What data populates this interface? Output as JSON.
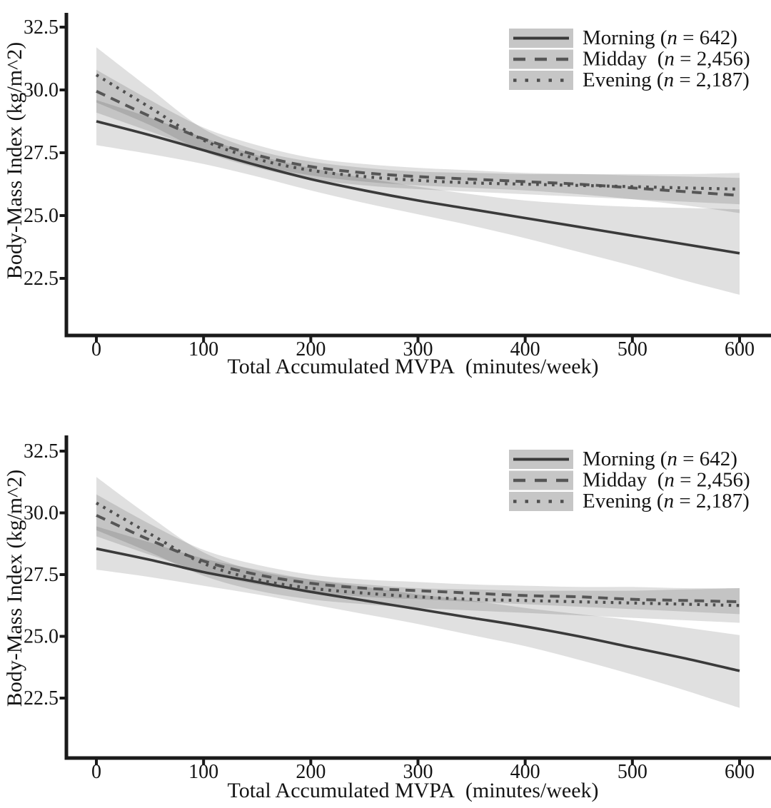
{
  "figure": {
    "background": "#ffffff",
    "description_note": ""
  },
  "style": {
    "axis_color": "#1a1a1a",
    "text_color": "#141414",
    "band_fill": "#000000",
    "band_opacity": 0.12,
    "legend_key_fill": "#c6c6c6",
    "line_morning": "#3a3a3a",
    "line_midday": "#565656",
    "line_evening": "#4e4e4e"
  },
  "chart_data": [
    {
      "type": "line",
      "title": "",
      "xlabel": "Total Accumulated MVPA  (minutes/week)",
      "ylabel": "Body-Mass Index (kg/m^2)",
      "xlim": [
        0,
        600
      ],
      "ylim": [
        20.2,
        33.1
      ],
      "grid": false,
      "legend_position": "top-right",
      "x_ticks": [
        {
          "v": 0,
          "label": "0"
        },
        {
          "v": 100,
          "label": "100"
        },
        {
          "v": 200,
          "label": "200"
        },
        {
          "v": 300,
          "label": "300"
        },
        {
          "v": 400,
          "label": "400"
        },
        {
          "v": 500,
          "label": "500"
        },
        {
          "v": 600,
          "label": "600"
        }
      ],
      "y_ticks": [
        {
          "v": 32.5,
          "label": "32.5"
        },
        {
          "v": 30.0,
          "label": "30.0"
        },
        {
          "v": 27.5,
          "label": "27.5"
        },
        {
          "v": 25.0,
          "label": "25.0"
        },
        {
          "v": 22.5,
          "label": "22.5"
        }
      ],
      "x": [
        0,
        50,
        100,
        150,
        200,
        250,
        300,
        350,
        400,
        450,
        500,
        550,
        600
      ],
      "series": [
        {
          "name": "Morning",
          "n": "642",
          "line_style": "solid",
          "legend_prefix": "Morning (",
          "legend_italic": "n",
          "legend_suffix": " = 642)",
          "y": [
            28.75,
            28.2,
            27.6,
            27.0,
            26.45,
            26.0,
            25.6,
            25.25,
            24.9,
            24.55,
            24.2,
            23.85,
            23.5
          ],
          "band_low": [
            27.8,
            27.45,
            27.05,
            26.55,
            26.0,
            25.5,
            25.05,
            24.6,
            24.1,
            23.55,
            23.0,
            22.4,
            21.85
          ],
          "band_high": [
            29.6,
            28.9,
            28.1,
            27.4,
            26.9,
            26.5,
            26.15,
            25.85,
            25.6,
            25.45,
            25.35,
            25.3,
            25.25
          ]
        },
        {
          "name": "Midday",
          "n": "2,456",
          "line_style": "dashed",
          "legend_prefix": "Midday  (",
          "legend_italic": "n",
          "legend_suffix": " = 2,456)",
          "y": [
            29.95,
            28.95,
            28.05,
            27.4,
            26.95,
            26.7,
            26.55,
            26.45,
            26.35,
            26.25,
            26.1,
            25.95,
            25.8
          ],
          "band_low": [
            29.1,
            28.35,
            27.6,
            27.0,
            26.6,
            26.35,
            26.2,
            26.1,
            26.0,
            25.85,
            25.65,
            25.4,
            25.1
          ],
          "band_high": [
            30.8,
            29.6,
            28.5,
            27.8,
            27.3,
            27.05,
            26.9,
            26.8,
            26.7,
            26.65,
            26.6,
            26.55,
            26.5
          ]
        },
        {
          "name": "Evening",
          "n": "2,187",
          "line_style": "dotted",
          "legend_prefix": "Evening (",
          "legend_italic": "n",
          "legend_suffix": " = 2,187)",
          "y": [
            30.6,
            29.3,
            28.0,
            27.25,
            26.8,
            26.55,
            26.4,
            26.3,
            26.25,
            26.2,
            26.15,
            26.1,
            26.05
          ],
          "band_low": [
            29.5,
            28.6,
            27.55,
            26.9,
            26.45,
            26.2,
            26.05,
            25.95,
            25.85,
            25.75,
            25.65,
            25.55,
            25.45
          ],
          "band_high": [
            31.7,
            30.05,
            28.45,
            27.6,
            27.15,
            26.9,
            26.75,
            26.7,
            26.65,
            26.65,
            26.65,
            26.65,
            26.7
          ]
        }
      ]
    },
    {
      "type": "line",
      "title": "",
      "xlabel": "Total Accumulated MVPA  (minutes/week)",
      "ylabel": "Body-Mass Index (kg/m^2)",
      "xlim": [
        0,
        600
      ],
      "ylim": [
        20.2,
        33.1
      ],
      "grid": false,
      "legend_position": "top-right",
      "x_ticks": [
        {
          "v": 0,
          "label": "0"
        },
        {
          "v": 100,
          "label": "100"
        },
        {
          "v": 200,
          "label": "200"
        },
        {
          "v": 300,
          "label": "300"
        },
        {
          "v": 400,
          "label": "400"
        },
        {
          "v": 500,
          "label": "500"
        },
        {
          "v": 600,
          "label": "600"
        }
      ],
      "y_ticks": [
        {
          "v": 32.5,
          "label": "32.5"
        },
        {
          "v": 30.0,
          "label": "30.0"
        },
        {
          "v": 27.5,
          "label": "27.5"
        },
        {
          "v": 25.0,
          "label": "25.0"
        },
        {
          "v": 22.5,
          "label": "22.5"
        }
      ],
      "x": [
        0,
        50,
        100,
        150,
        200,
        250,
        300,
        350,
        400,
        450,
        500,
        550,
        600
      ],
      "series": [
        {
          "name": "Morning",
          "n": "642",
          "line_style": "solid",
          "legend_prefix": "Morning (",
          "legend_italic": "n",
          "legend_suffix": " = 642)",
          "y": [
            28.55,
            28.1,
            27.6,
            27.2,
            26.8,
            26.45,
            26.1,
            25.75,
            25.4,
            25.0,
            24.55,
            24.1,
            23.6
          ],
          "band_low": [
            27.7,
            27.4,
            27.05,
            26.7,
            26.3,
            25.9,
            25.5,
            25.05,
            24.6,
            24.05,
            23.45,
            22.8,
            22.1
          ],
          "band_high": [
            29.45,
            28.8,
            28.15,
            27.7,
            27.3,
            27.0,
            26.7,
            26.45,
            26.15,
            25.9,
            25.65,
            25.35,
            25.05
          ]
        },
        {
          "name": "Midday",
          "n": "2,456",
          "line_style": "dashed",
          "legend_prefix": "Midday  (",
          "legend_italic": "n",
          "legend_suffix": " = 2,456)",
          "y": [
            29.9,
            28.9,
            28.05,
            27.5,
            27.15,
            26.95,
            26.85,
            26.75,
            26.65,
            26.6,
            26.5,
            26.45,
            26.4
          ],
          "band_low": [
            29.05,
            28.3,
            27.6,
            27.1,
            26.8,
            26.6,
            26.5,
            26.4,
            26.3,
            26.2,
            26.1,
            26.0,
            25.9
          ],
          "band_high": [
            30.75,
            29.55,
            28.5,
            27.9,
            27.5,
            27.3,
            27.2,
            27.1,
            27.05,
            27.0,
            27.0,
            26.95,
            26.95
          ]
        },
        {
          "name": "Evening",
          "n": "2,187",
          "line_style": "dotted",
          "legend_prefix": "Evening (",
          "legend_italic": "n",
          "legend_suffix": " = 2,187)",
          "y": [
            30.4,
            29.15,
            27.95,
            27.3,
            26.95,
            26.75,
            26.6,
            26.5,
            26.45,
            26.4,
            26.35,
            26.3,
            26.25
          ],
          "band_low": [
            29.3,
            28.4,
            27.45,
            26.85,
            26.5,
            26.3,
            26.15,
            26.05,
            25.95,
            25.85,
            25.75,
            25.65,
            25.55
          ],
          "band_high": [
            31.45,
            29.85,
            28.4,
            27.65,
            27.3,
            27.1,
            26.95,
            26.9,
            26.85,
            26.85,
            26.85,
            26.9,
            26.95
          ]
        }
      ]
    }
  ]
}
